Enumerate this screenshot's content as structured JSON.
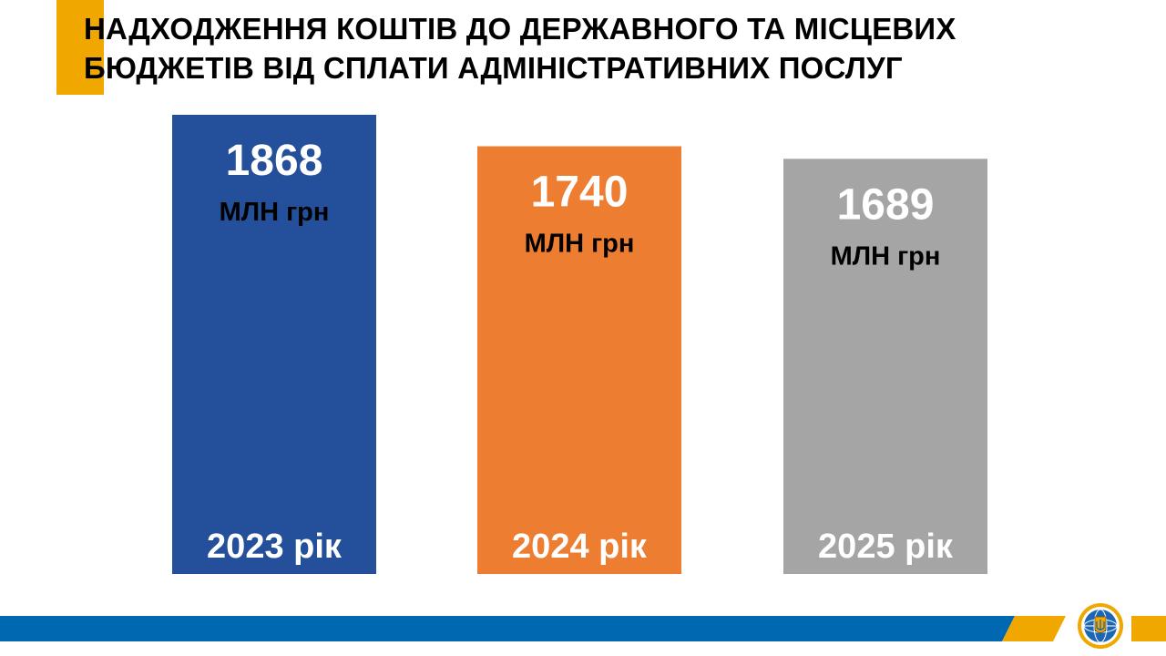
{
  "slide": {
    "title_line_1": "НАДХОДЖЕННЯ КОШТІВ ДО ДЕРЖАВНОГО ТА МІСЦЕВИХ",
    "title_line_2": "БЮДЖЕТІВ ВІД СПЛАТИ АДМІНІСТРАТИВНИХ ПОСЛУГ"
  },
  "colors": {
    "accent": "#F0A800",
    "footer_blue": "#0067B1",
    "footer_yellow": "#F0A800"
  },
  "chart_data": {
    "type": "bar",
    "categories": [
      "2023 рік",
      "2024 рік",
      "2025 рік"
    ],
    "values": [
      1868,
      1740,
      1689
    ],
    "value_labels": [
      "1868",
      "1740",
      "1689"
    ],
    "unit": "МЛН грн",
    "bar_colors": [
      "#244F9A",
      "#ED7D31",
      "#A5A5A5"
    ],
    "value_label_color": "#FFFFFF",
    "unit_label_color": "#000000",
    "category_label_color": "#FFFFFF",
    "grid": false,
    "legend": "none"
  }
}
